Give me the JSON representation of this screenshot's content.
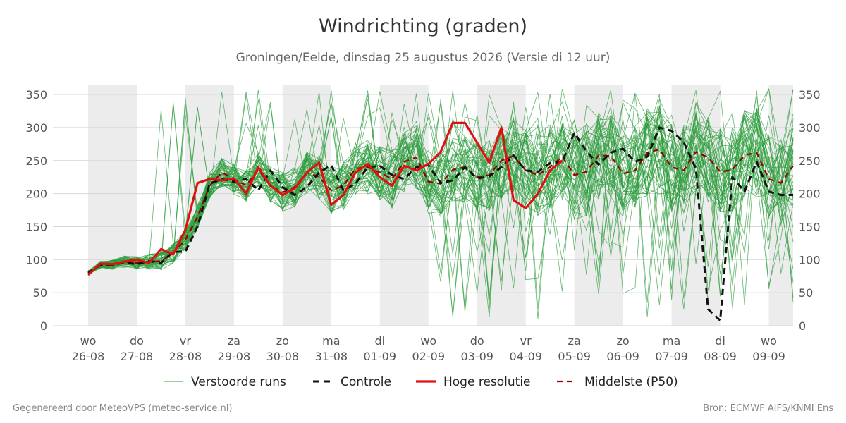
{
  "header": {
    "title": "Windrichting (graden)",
    "subtitle": "Groningen/Eelde, dinsdag 25 augustus 2026 (Versie di 12 uur)"
  },
  "footer": {
    "left": "Gegenereerd door MeteoVPS (meteo-service.nl)",
    "right": "Bron: ECMWF AIFS/KNMI Ens"
  },
  "colors": {
    "ensemble": "#2e9e3e",
    "control": "#111111",
    "high_res": "#e01010",
    "median": "#990000",
    "weekend_band": "#ececec",
    "grid": "#d6d6d6"
  },
  "legend": [
    {
      "label": "Verstoorde runs",
      "style": "thin-green"
    },
    {
      "label": "Controle",
      "style": "dashed-black"
    },
    {
      "label": "Hoge resolutie",
      "style": "solid-red"
    },
    {
      "label": "Middelste (P50)",
      "style": "dashed-darkred"
    }
  ],
  "chart_data": {
    "type": "line",
    "title": "Windrichting (graden)",
    "ylim": [
      0,
      365
    ],
    "xlim": [
      0,
      14.5
    ],
    "y_ticks": [
      0,
      50,
      100,
      150,
      200,
      250,
      300,
      350
    ],
    "grid": true,
    "legend_position": "bottom",
    "x_ticks": [
      {
        "x": 0,
        "day": "wo",
        "date": "26-08"
      },
      {
        "x": 1,
        "day": "do",
        "date": "27-08"
      },
      {
        "x": 2,
        "day": "vr",
        "date": "28-08"
      },
      {
        "x": 3,
        "day": "za",
        "date": "29-08"
      },
      {
        "x": 4,
        "day": "zo",
        "date": "30-08"
      },
      {
        "x": 5,
        "day": "ma",
        "date": "31-08"
      },
      {
        "x": 6,
        "day": "di",
        "date": "01-09"
      },
      {
        "x": 7,
        "day": "wo",
        "date": "02-09"
      },
      {
        "x": 8,
        "day": "do",
        "date": "03-09"
      },
      {
        "x": 9,
        "day": "vr",
        "date": "04-09"
      },
      {
        "x": 10,
        "day": "za",
        "date": "05-09"
      },
      {
        "x": 11,
        "day": "zo",
        "date": "06-09"
      },
      {
        "x": 12,
        "day": "ma",
        "date": "07-09"
      },
      {
        "x": 13,
        "day": "di",
        "date": "08-09"
      },
      {
        "x": 14,
        "day": "wo",
        "date": "09-09"
      }
    ],
    "shaded_bands": [
      [
        0,
        1
      ],
      [
        2,
        3
      ],
      [
        4,
        5
      ],
      [
        6,
        7
      ],
      [
        8,
        9
      ],
      [
        10,
        11
      ],
      [
        12,
        13
      ],
      [
        14,
        14.5
      ]
    ],
    "series": [
      {
        "name": "Controle",
        "x": [
          0,
          0.25,
          0.5,
          0.75,
          1,
          1.25,
          1.5,
          1.75,
          2,
          2.25,
          2.5,
          2.75,
          3,
          3.25,
          3.5,
          3.75,
          4,
          4.25,
          4.5,
          4.75,
          5,
          5.25,
          5.5,
          5.75,
          6,
          6.25,
          6.5,
          6.75,
          7,
          7.25,
          7.5,
          7.75,
          8,
          8.25,
          8.5,
          8.75,
          9,
          9.25,
          9.5,
          9.75,
          10,
          10.25,
          10.5,
          10.75,
          11,
          11.25,
          11.5,
          11.75,
          12,
          12.25,
          12.5,
          12.75,
          13,
          13.25,
          13.5,
          13.75,
          14,
          14.25,
          14.5
        ],
        "values": [
          80,
          92,
          92,
          96,
          93,
          98,
          95,
          112,
          112,
          150,
          215,
          222,
          218,
          222,
          205,
          235,
          210,
          198,
          210,
          232,
          243,
          205,
          215,
          240,
          242,
          228,
          222,
          240,
          243,
          216,
          220,
          240,
          223,
          226,
          240,
          258,
          235,
          233,
          246,
          248,
          292,
          264,
          244,
          262,
          268,
          248,
          256,
          300,
          295,
          278,
          238,
          25,
          8,
          225,
          203,
          248,
          203,
          198,
          198
        ]
      },
      {
        "name": "Hoge resolutie",
        "x": [
          0,
          0.25,
          0.5,
          0.75,
          1,
          1.25,
          1.5,
          1.75,
          2,
          2.25,
          2.5,
          2.75,
          3,
          3.25,
          3.5,
          3.75,
          4,
          4.25,
          4.5,
          4.75,
          5,
          5.25,
          5.5,
          5.75,
          6,
          6.25,
          6.5,
          6.75,
          7,
          7.25,
          7.5,
          7.75,
          8,
          8.25,
          8.5,
          8.75,
          9,
          9.25,
          9.5,
          9.75
        ],
        "values": [
          77,
          94,
          93,
          97,
          100,
          95,
          116,
          108,
          145,
          216,
          222,
          220,
          223,
          200,
          240,
          212,
          198,
          208,
          232,
          247,
          183,
          198,
          232,
          245,
          225,
          212,
          242,
          235,
          245,
          263,
          307,
          307,
          277,
          247,
          300,
          190,
          178,
          200,
          235,
          250
        ]
      },
      {
        "name": "Middelste (P50)",
        "x": [
          0,
          0.25,
          0.5,
          0.75,
          1,
          1.25,
          1.5,
          1.75,
          2,
          2.25,
          2.5,
          2.75,
          3,
          3.25,
          3.5,
          3.75,
          4,
          4.25,
          4.5,
          4.75,
          5,
          5.25,
          5.5,
          5.75,
          6,
          6.25,
          6.5,
          6.75,
          7,
          7.25,
          7.5,
          7.75,
          8,
          8.25,
          8.5,
          8.75,
          9,
          9.25,
          9.5,
          9.75,
          10,
          10.25,
          10.5,
          10.75,
          11,
          11.25,
          11.5,
          11.75,
          12,
          12.25,
          12.5,
          12.75,
          13,
          13.25,
          13.5,
          13.75,
          14,
          14.25,
          14.5
        ],
        "values": [
          80,
          92,
          92,
          97,
          95,
          97,
          98,
          110,
          130,
          165,
          212,
          232,
          222,
          212,
          236,
          212,
          202,
          210,
          232,
          225,
          205,
          212,
          238,
          240,
          232,
          222,
          248,
          255,
          218,
          215,
          236,
          240,
          225,
          228,
          250,
          257,
          235,
          228,
          240,
          256,
          228,
          233,
          258,
          257,
          230,
          235,
          262,
          267,
          240,
          235,
          263,
          255,
          233,
          236,
          258,
          262,
          222,
          216,
          242
        ]
      }
    ]
  }
}
